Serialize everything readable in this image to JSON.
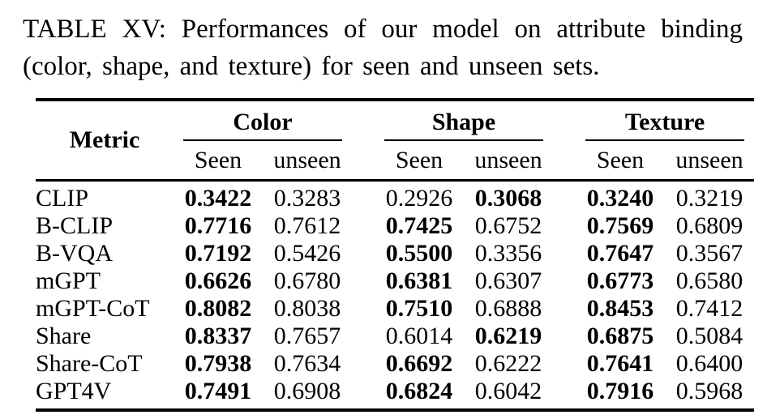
{
  "caption": {
    "line1": "TABLE XV: Performances of our model on attribute binding",
    "line2": "(color, shape, and texture) for seen and unseen sets."
  },
  "table": {
    "metric_header": "Metric",
    "groups": [
      {
        "label": "Color",
        "sub": [
          "Seen",
          "unseen"
        ]
      },
      {
        "label": "Shape",
        "sub": [
          "Seen",
          "unseen"
        ]
      },
      {
        "label": "Texture",
        "sub": [
          "Seen",
          "unseen"
        ]
      }
    ],
    "rows": [
      {
        "metric": "CLIP",
        "cells": [
          {
            "v": "0.3422",
            "b": true
          },
          {
            "v": "0.3283",
            "b": false
          },
          {
            "v": "0.2926",
            "b": false
          },
          {
            "v": "0.3068",
            "b": true
          },
          {
            "v": "0.3240",
            "b": true
          },
          {
            "v": "0.3219",
            "b": false
          }
        ]
      },
      {
        "metric": "B-CLIP",
        "cells": [
          {
            "v": "0.7716",
            "b": true
          },
          {
            "v": "0.7612",
            "b": false
          },
          {
            "v": "0.7425",
            "b": true
          },
          {
            "v": "0.6752",
            "b": false
          },
          {
            "v": "0.7569",
            "b": true
          },
          {
            "v": "0.6809",
            "b": false
          }
        ]
      },
      {
        "metric": "B-VQA",
        "cells": [
          {
            "v": "0.7192",
            "b": true
          },
          {
            "v": "0.5426",
            "b": false
          },
          {
            "v": "0.5500",
            "b": true
          },
          {
            "v": "0.3356",
            "b": false
          },
          {
            "v": "0.7647",
            "b": true
          },
          {
            "v": "0.3567",
            "b": false
          }
        ]
      },
      {
        "metric": "mGPT",
        "cells": [
          {
            "v": "0.6626",
            "b": true
          },
          {
            "v": "0.6780",
            "b": false
          },
          {
            "v": "0.6381",
            "b": true
          },
          {
            "v": "0.6307",
            "b": false
          },
          {
            "v": "0.6773",
            "b": true
          },
          {
            "v": "0.6580",
            "b": false
          }
        ]
      },
      {
        "metric": "mGPT-CoT",
        "cells": [
          {
            "v": "0.8082",
            "b": true
          },
          {
            "v": "0.8038",
            "b": false
          },
          {
            "v": "0.7510",
            "b": true
          },
          {
            "v": "0.6888",
            "b": false
          },
          {
            "v": "0.8453",
            "b": true
          },
          {
            "v": "0.7412",
            "b": false
          }
        ]
      },
      {
        "metric": "Share",
        "cells": [
          {
            "v": "0.8337",
            "b": true
          },
          {
            "v": "0.7657",
            "b": false
          },
          {
            "v": "0.6014",
            "b": false
          },
          {
            "v": "0.6219",
            "b": true
          },
          {
            "v": "0.6875",
            "b": true
          },
          {
            "v": "0.5084",
            "b": false
          }
        ]
      },
      {
        "metric": "Share-CoT",
        "cells": [
          {
            "v": "0.7938",
            "b": true
          },
          {
            "v": "0.7634",
            "b": false
          },
          {
            "v": "0.6692",
            "b": true
          },
          {
            "v": "0.6222",
            "b": false
          },
          {
            "v": "0.7641",
            "b": true
          },
          {
            "v": "0.6400",
            "b": false
          }
        ]
      },
      {
        "metric": "GPT4V",
        "cells": [
          {
            "v": "0.7491",
            "b": true
          },
          {
            "v": "0.6908",
            "b": false
          },
          {
            "v": "0.6824",
            "b": true
          },
          {
            "v": "0.6042",
            "b": false
          },
          {
            "v": "0.7916",
            "b": true
          },
          {
            "v": "0.5968",
            "b": false
          }
        ]
      }
    ]
  },
  "colors": {
    "text": "#000000",
    "background": "#ffffff",
    "rule": "#000000"
  }
}
